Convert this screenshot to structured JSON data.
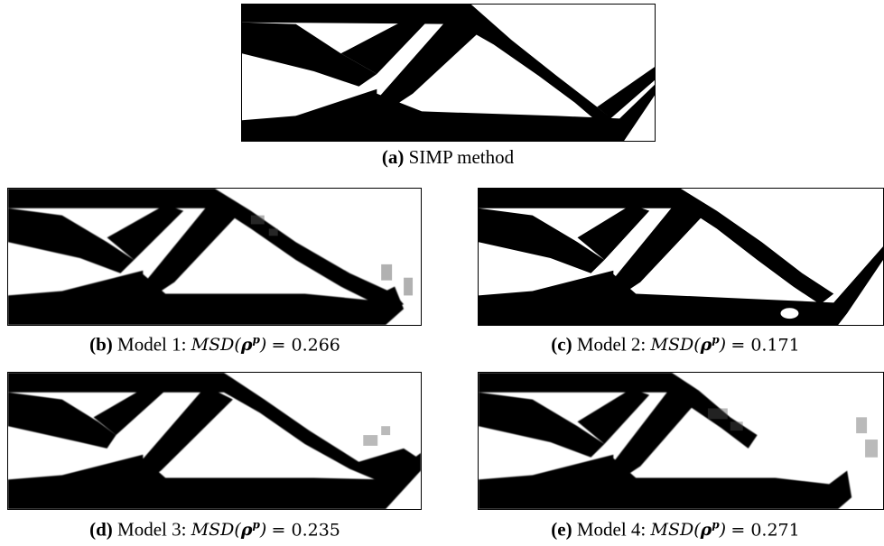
{
  "panels": [
    {
      "label": "(a)",
      "text": "SIMP method"
    },
    {
      "label": "(b)",
      "text": "Model 1:",
      "metric": "MSD",
      "symbol": "ρ",
      "superscript": "p",
      "value": "0.266"
    },
    {
      "label": "(c)",
      "text": "Model 2:",
      "metric": "MSD",
      "symbol": "ρ",
      "superscript": "p",
      "value": "0.171"
    },
    {
      "label": "(d)",
      "text": "Model 3:",
      "metric": "MSD",
      "symbol": "ρ",
      "superscript": "p",
      "value": "0.235"
    },
    {
      "label": "(e)",
      "text": "Model 4:",
      "metric": "MSD",
      "symbol": "ρ",
      "superscript": "p",
      "value": "0.271"
    }
  ]
}
